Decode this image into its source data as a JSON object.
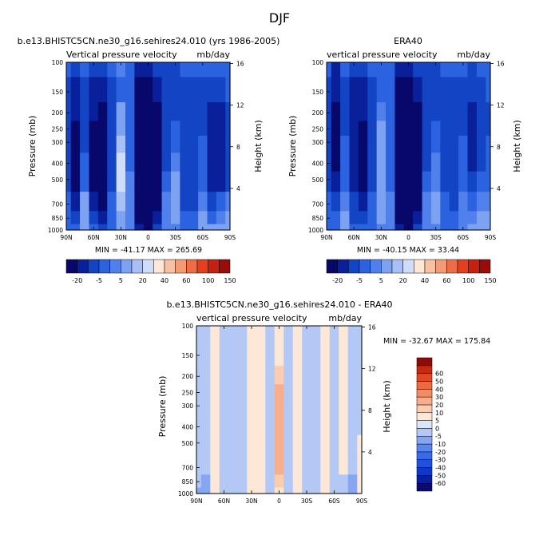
{
  "figure_title": "DJF",
  "chart_data": [
    {
      "type": "heatmap",
      "title": "b.e13.BHISTC5CN.ne30_g16.sehires24.010 (yrs 1986-2005)",
      "left_string": "Vertical pressure velocity",
      "right_string": "mb/day",
      "xlabel": "",
      "ylabel": "Pressure (mb)",
      "y2label": "Height (km)",
      "x_ticks": [
        "90N",
        "60N",
        "30N",
        "0",
        "30S",
        "60S",
        "90S"
      ],
      "y_ticks": [
        "100",
        "150",
        "200",
        "250",
        "300",
        "400",
        "500",
        "700",
        "850",
        "1000"
      ],
      "y2_ticks": [
        "16",
        "12",
        "8",
        "4"
      ],
      "xlim": [
        90,
        -90
      ],
      "ylim": [
        1000,
        100
      ],
      "y_scale": "log",
      "min_max_text": "MIN = -41.17   MAX = 265.69",
      "colorbar": {
        "orientation": "horizontal",
        "labels": [
          "-20",
          "-5",
          "5",
          "20",
          "40",
          "60",
          "100",
          "150"
        ],
        "colors": [
          "#08086b",
          "#0a209a",
          "#1344c4",
          "#2a62e0",
          "#4f80ec",
          "#7ea2f2",
          "#a8c0f5",
          "#cfdcfa",
          "#fde8d8",
          "#f9c0a2",
          "#f49a74",
          "#ee6d44",
          "#e5401e",
          "#c52010",
          "#990c08"
        ]
      },
      "field": {
        "x": [
          90,
          80,
          70,
          60,
          50,
          40,
          30,
          20,
          10,
          0,
          -10,
          -20,
          -30,
          -40,
          -50,
          -60,
          -70,
          -80,
          -90
        ],
        "p": [
          100,
          150,
          200,
          250,
          300,
          400,
          500,
          700,
          850,
          1000
        ],
        "values_mb_per_day": [
          [
            -5,
            -10,
            -5,
            -10,
            -10,
            -5,
            -2,
            -5,
            -15,
            -15,
            -10,
            -10,
            -10,
            -5,
            -5,
            -5,
            -5,
            -5,
            -5
          ],
          [
            -10,
            -15,
            -10,
            -15,
            -15,
            -10,
            -5,
            -5,
            -20,
            -20,
            -15,
            -10,
            -10,
            -10,
            -10,
            -10,
            -10,
            -10,
            -5
          ],
          [
            -10,
            -15,
            -10,
            -15,
            -20,
            -10,
            2,
            -5,
            -25,
            -30,
            -20,
            -10,
            -10,
            -10,
            -10,
            -10,
            -15,
            -15,
            -10
          ],
          [
            -10,
            -20,
            -10,
            -20,
            -20,
            -10,
            5,
            -5,
            -30,
            -35,
            -25,
            -10,
            -5,
            -10,
            -10,
            -10,
            -15,
            -15,
            -10
          ],
          [
            -10,
            -20,
            -10,
            -20,
            -20,
            -10,
            10,
            -5,
            -30,
            -40,
            -25,
            -10,
            -5,
            -10,
            -10,
            -5,
            -15,
            -15,
            -10
          ],
          [
            -10,
            -20,
            -5,
            -20,
            -20,
            -10,
            15,
            -5,
            -30,
            -40,
            -25,
            -10,
            0,
            -10,
            -10,
            -5,
            -15,
            -15,
            -10
          ],
          [
            -10,
            -20,
            -5,
            -20,
            -20,
            -10,
            15,
            0,
            -30,
            -40,
            -25,
            -5,
            5,
            -10,
            -10,
            -5,
            -15,
            -15,
            -10
          ],
          [
            -5,
            -15,
            5,
            -15,
            -20,
            -5,
            10,
            0,
            -25,
            -35,
            -20,
            0,
            5,
            -10,
            -10,
            0,
            -10,
            -5,
            0
          ],
          [
            -5,
            -10,
            5,
            -10,
            -15,
            -5,
            5,
            0,
            -20,
            -30,
            -15,
            0,
            5,
            -5,
            -5,
            5,
            -5,
            0,
            5
          ],
          [
            -5,
            -5,
            2,
            -5,
            -10,
            -5,
            5,
            0,
            -15,
            -20,
            -10,
            0,
            0,
            -5,
            -5,
            5,
            5,
            5,
            5
          ]
        ]
      }
    },
    {
      "type": "heatmap",
      "title": "ERA40",
      "left_string": "vertical pressure velocity",
      "right_string": "mb/day",
      "xlabel": "",
      "ylabel": "Pressure (mb)",
      "y2label": "Height (km)",
      "x_ticks": [
        "90N",
        "60N",
        "30N",
        "0",
        "30S",
        "60S",
        "90S"
      ],
      "y_ticks": [
        "100",
        "150",
        "200",
        "250",
        "300",
        "400",
        "500",
        "700",
        "850",
        "1000"
      ],
      "y2_ticks": [
        "16",
        "12",
        "8",
        "4"
      ],
      "xlim": [
        90,
        -90
      ],
      "ylim": [
        1000,
        100
      ],
      "y_scale": "log",
      "min_max_text": "MIN = -40.15   MAX =  33.44",
      "colorbar": {
        "orientation": "horizontal",
        "labels": [
          "-20",
          "-5",
          "5",
          "20",
          "40",
          "60",
          "100",
          "150"
        ],
        "colors": [
          "#08086b",
          "#0a209a",
          "#1344c4",
          "#2a62e0",
          "#4f80ec",
          "#7ea2f2",
          "#a8c0f5",
          "#cfdcfa",
          "#fde8d8",
          "#f9c0a2",
          "#f49a74",
          "#ee6d44",
          "#e5401e",
          "#c52010",
          "#990c08"
        ]
      },
      "field": {
        "x": [
          90,
          80,
          70,
          60,
          50,
          40,
          30,
          20,
          10,
          0,
          -10,
          -20,
          -30,
          -40,
          -50,
          -60,
          -70,
          -80,
          -90
        ],
        "p": [
          100,
          150,
          200,
          250,
          300,
          400,
          500,
          700,
          850,
          1000
        ],
        "values_mb_per_day": [
          [
            -5,
            -15,
            -5,
            -10,
            -10,
            -5,
            -5,
            -5,
            -15,
            -15,
            -10,
            -10,
            -10,
            -5,
            -5,
            -5,
            -10,
            -5,
            -5
          ],
          [
            -10,
            -15,
            -10,
            -15,
            -15,
            -10,
            -5,
            -5,
            -20,
            -20,
            -15,
            -10,
            -10,
            -10,
            -10,
            -10,
            -10,
            -10,
            -5
          ],
          [
            -10,
            -20,
            -10,
            -15,
            -15,
            -10,
            0,
            -5,
            -25,
            -30,
            -20,
            -10,
            -10,
            -10,
            -10,
            -10,
            -15,
            -10,
            -10
          ],
          [
            -10,
            -20,
            -10,
            -15,
            -20,
            -10,
            5,
            -5,
            -30,
            -35,
            -25,
            -10,
            -5,
            -10,
            -10,
            -10,
            -15,
            -10,
            -10
          ],
          [
            -10,
            -20,
            -5,
            -15,
            -20,
            -10,
            5,
            -5,
            -30,
            -40,
            -25,
            -10,
            -5,
            -10,
            -10,
            -5,
            -15,
            -10,
            -5
          ],
          [
            -10,
            -20,
            -5,
            -15,
            -20,
            -10,
            5,
            -5,
            -30,
            -40,
            -25,
            -10,
            0,
            -10,
            -10,
            -5,
            -15,
            -10,
            -5
          ],
          [
            -10,
            -15,
            -5,
            -15,
            -20,
            -10,
            5,
            -5,
            -30,
            -40,
            -25,
            -5,
            0,
            -10,
            -10,
            -5,
            -10,
            -5,
            -5
          ],
          [
            -5,
            -10,
            0,
            -10,
            -15,
            -5,
            5,
            0,
            -25,
            -35,
            -20,
            0,
            5,
            -5,
            -10,
            0,
            -5,
            0,
            0
          ],
          [
            -5,
            -5,
            5,
            -10,
            -10,
            -5,
            5,
            0,
            -20,
            -30,
            -15,
            0,
            5,
            -5,
            -5,
            0,
            0,
            5,
            5
          ],
          [
            -5,
            -5,
            5,
            -5,
            -5,
            -5,
            0,
            0,
            -15,
            -20,
            -10,
            0,
            0,
            -5,
            -5,
            0,
            5,
            5,
            5
          ]
        ]
      }
    },
    {
      "type": "heatmap",
      "title": "b.e13.BHISTC5CN.ne30_g16.sehires24.010 - ERA40",
      "left_string": "vertical pressure velocity",
      "right_string": "mb/day",
      "xlabel": "",
      "ylabel": "Pressure (mb)",
      "y2label": "Height (km)",
      "x_ticks": [
        "90N",
        "60N",
        "30N",
        "0",
        "30S",
        "60S",
        "90S"
      ],
      "y_ticks": [
        "100",
        "150",
        "200",
        "250",
        "300",
        "400",
        "500",
        "700",
        "850",
        "1000"
      ],
      "y2_ticks": [
        "16",
        "12",
        "8",
        "4"
      ],
      "xlim": [
        90,
        -90
      ],
      "ylim": [
        1000,
        100
      ],
      "y_scale": "log",
      "min_max_text": "MIN = -32.67   MAX = 175.84",
      "colorbar": {
        "orientation": "vertical",
        "labels": [
          "-60",
          "-50",
          "-40",
          "-30",
          "-20",
          "-10",
          "-5",
          "0",
          "5",
          "10",
          "20",
          "30",
          "40",
          "50",
          "60"
        ],
        "colors": [
          "#0a0a6e",
          "#0a1ea0",
          "#1038c8",
          "#2050e0",
          "#3a6ae8",
          "#5a84ee",
          "#86a6f2",
          "#b4c8f6",
          "#dce6fa",
          "#fde8d8",
          "#fbccb0",
          "#f7ae8c",
          "#f28c64",
          "#ec6a40",
          "#e04822",
          "#c42a12",
          "#8e0c08"
        ]
      },
      "field": {
        "x": [
          90,
          80,
          70,
          60,
          50,
          40,
          30,
          20,
          10,
          0,
          -10,
          -20,
          -30,
          -40,
          -50,
          -60,
          -70,
          -80,
          -90
        ],
        "p": [
          100,
          150,
          200,
          250,
          300,
          400,
          500,
          700,
          850,
          1000
        ],
        "values_mb_per_day": [
          [
            -2,
            -2,
            2,
            -2,
            -2,
            -2,
            2,
            2,
            -2,
            2,
            -2,
            2,
            -2,
            -2,
            2,
            -2,
            2,
            -2,
            -2
          ],
          [
            -2,
            -2,
            2,
            -2,
            -2,
            -2,
            2,
            2,
            -2,
            2,
            -2,
            2,
            -2,
            -2,
            2,
            -2,
            2,
            -2,
            -2
          ],
          [
            -2,
            -2,
            2,
            -2,
            -4,
            -2,
            2,
            2,
            -2,
            4,
            -2,
            2,
            -2,
            -2,
            2,
            -2,
            2,
            -2,
            -2
          ],
          [
            -2,
            -2,
            2,
            -2,
            -4,
            -2,
            2,
            2,
            -2,
            6,
            -2,
            2,
            -2,
            -2,
            2,
            -2,
            2,
            -2,
            -2
          ],
          [
            -2,
            -2,
            2,
            -2,
            -4,
            -2,
            2,
            2,
            -2,
            8,
            -2,
            2,
            -2,
            -2,
            2,
            -2,
            2,
            -2,
            -2
          ],
          [
            -2,
            -2,
            2,
            -2,
            -4,
            -2,
            2,
            2,
            -2,
            8,
            -2,
            2,
            -2,
            -2,
            2,
            -2,
            2,
            -2,
            -2
          ],
          [
            -2,
            -2,
            2,
            -4,
            -4,
            -2,
            2,
            2,
            -2,
            8,
            -2,
            2,
            -2,
            -2,
            2,
            -2,
            2,
            -2,
            2
          ],
          [
            -2,
            -4,
            2,
            -4,
            -4,
            -2,
            2,
            2,
            -2,
            6,
            -2,
            2,
            -2,
            -2,
            2,
            -2,
            2,
            -4,
            2
          ],
          [
            -4,
            -6,
            2,
            -4,
            -4,
            -2,
            2,
            2,
            -2,
            4,
            -2,
            2,
            -2,
            -2,
            2,
            -2,
            -2,
            -6,
            2
          ],
          [
            -6,
            -8,
            2,
            -4,
            -2,
            -2,
            2,
            2,
            -2,
            2,
            -2,
            2,
            -2,
            -2,
            2,
            -2,
            -2,
            -8,
            2
          ]
        ]
      }
    }
  ]
}
